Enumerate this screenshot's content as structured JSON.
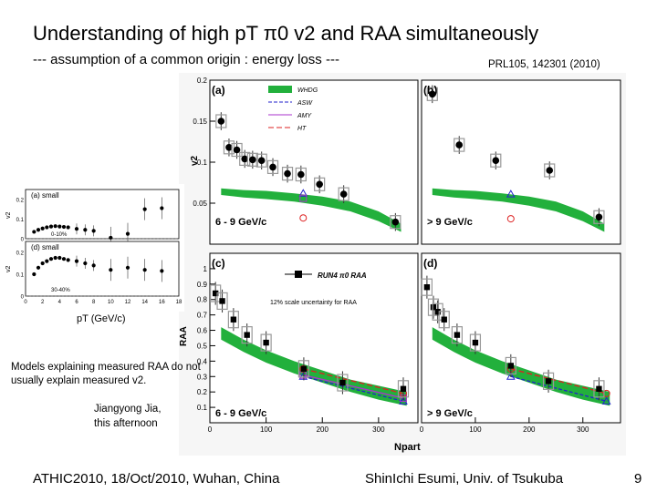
{
  "slide": {
    "title": "Understanding of high pT π0 v2 and RAA simultaneously",
    "subtitle": "--- assumption of a common origin : energy loss ---",
    "reference": "PRL105, 142301 (2010)",
    "small_xlabel": "pT (GeV/c)",
    "note": "Models explaining measured RAA do not usually explain measured v2.",
    "speaker_line1": "Jiangyong Jia,",
    "speaker_line2": "this afternoon",
    "footer_left": "ATHIC2010, 18/Oct/2010, Wuhan, China",
    "footer_center": "ShinIchi Esumi, Univ. of Tsukuba",
    "page_number": "9"
  },
  "chart_data": [
    {
      "type": "scatter",
      "panel": "(a)",
      "ylabel": "v2",
      "xlabel": "",
      "xlim": [
        0,
        370
      ],
      "ylim": [
        0,
        0.2
      ],
      "yticks": [
        0.05,
        0.1,
        0.15,
        0.2
      ],
      "annotation": "6 - 9 GeV/c",
      "legend_entries": [
        "WHDG",
        "ASW",
        "AMY",
        "HT"
      ],
      "series": [
        {
          "name": "data",
          "x": [
            20,
            34,
            48,
            62,
            76,
            92,
            112,
            138,
            162,
            195,
            238,
            330
          ],
          "y": [
            0.15,
            0.118,
            0.115,
            0.104,
            0.103,
            0.102,
            0.094,
            0.086,
            0.085,
            0.073,
            0.061,
            0.027
          ]
        },
        {
          "name": "WHDG band upper",
          "x": [
            20,
            60,
            100,
            150,
            200,
            250,
            300,
            340
          ],
          "y": [
            0.068,
            0.066,
            0.065,
            0.062,
            0.058,
            0.052,
            0.04,
            0.025
          ]
        },
        {
          "name": "WHDG band lower",
          "x": [
            20,
            60,
            100,
            150,
            200,
            250,
            300,
            340
          ],
          "y": [
            0.06,
            0.057,
            0.055,
            0.052,
            0.047,
            0.04,
            0.028,
            0.015
          ]
        },
        {
          "name": "ASW",
          "x": [
            166
          ],
          "y": [
            0.062
          ]
        },
        {
          "name": "AMY",
          "x": [
            166
          ],
          "y": [
            0.056
          ]
        },
        {
          "name": "HT",
          "x": [
            166
          ],
          "y": [
            0.032
          ]
        }
      ]
    },
    {
      "type": "scatter",
      "panel": "(b)",
      "ylabel": "",
      "xlabel": "",
      "xlim": [
        0,
        370
      ],
      "ylim": [
        0,
        0.2
      ],
      "annotation": "> 9 GeV/c",
      "series": [
        {
          "name": "data",
          "x": [
            20,
            70,
            138,
            238,
            330
          ],
          "y": [
            0.183,
            0.121,
            0.102,
            0.09,
            0.033
          ]
        },
        {
          "name": "WHDG band upper",
          "x": [
            20,
            60,
            100,
            150,
            200,
            250,
            300,
            340
          ],
          "y": [
            0.068,
            0.066,
            0.065,
            0.062,
            0.058,
            0.052,
            0.04,
            0.025
          ]
        },
        {
          "name": "WHDG band lower",
          "x": [
            20,
            60,
            100,
            150,
            200,
            250,
            300,
            340
          ],
          "y": [
            0.06,
            0.057,
            0.055,
            0.052,
            0.047,
            0.04,
            0.028,
            0.015
          ]
        },
        {
          "name": "ASW",
          "x": [
            166
          ],
          "y": [
            0.061
          ]
        },
        {
          "name": "HT",
          "x": [
            166
          ],
          "y": [
            0.031
          ]
        }
      ]
    },
    {
      "type": "scatter",
      "panel": "(c)",
      "ylabel": "RAA",
      "xlabel": "",
      "xlim": [
        0,
        370
      ],
      "ylim": [
        0,
        1.1
      ],
      "yticks": [
        0.1,
        0.2,
        0.3,
        0.4,
        0.5,
        0.6,
        0.7,
        0.8,
        0.9,
        1.0
      ],
      "xticks": [
        0,
        100,
        200,
        300
      ],
      "annotation": "6 - 9 GeV/c",
      "legend_entries": [
        "RUN4 π0 RAA"
      ],
      "note": "12% scale uncertainty for RAA",
      "series": [
        {
          "name": "RUN4 data",
          "x": [
            10,
            22,
            42,
            66,
            100,
            167,
            236,
            344
          ],
          "y": [
            0.84,
            0.79,
            0.67,
            0.57,
            0.52,
            0.35,
            0.26,
            0.22
          ]
        },
        {
          "name": "WHDG band upper",
          "x": [
            20,
            60,
            100,
            150,
            200,
            250,
            300,
            350
          ],
          "y": [
            0.62,
            0.54,
            0.47,
            0.4,
            0.34,
            0.28,
            0.24,
            0.2
          ]
        },
        {
          "name": "WHDG band lower",
          "x": [
            20,
            60,
            100,
            150,
            200,
            250,
            300,
            350
          ],
          "y": [
            0.54,
            0.46,
            0.39,
            0.32,
            0.26,
            0.2,
            0.15,
            0.11
          ]
        },
        {
          "name": "HT",
          "x": [
            166,
            344
          ],
          "y": [
            0.35,
            0.19
          ]
        },
        {
          "name": "AMY",
          "x": [
            166,
            344
          ],
          "y": [
            0.31,
            0.16
          ]
        },
        {
          "name": "ASW",
          "x": [
            166,
            344
          ],
          "y": [
            0.3,
            0.14
          ]
        }
      ]
    },
    {
      "type": "scatter",
      "panel": "(d)",
      "ylabel": "",
      "xlabel": "Npart",
      "xlim": [
        0,
        370
      ],
      "ylim": [
        0,
        1.1
      ],
      "xticks": [
        0,
        100,
        200,
        300
      ],
      "annotation": "> 9 GeV/c",
      "series": [
        {
          "name": "data",
          "x": [
            10,
            22,
            30,
            42,
            66,
            100,
            166,
            236,
            330
          ],
          "y": [
            0.88,
            0.75,
            0.72,
            0.67,
            0.57,
            0.52,
            0.37,
            0.27,
            0.22
          ]
        },
        {
          "name": "WHDG band upper",
          "x": [
            20,
            60,
            100,
            150,
            200,
            250,
            300,
            350
          ],
          "y": [
            0.62,
            0.54,
            0.47,
            0.4,
            0.34,
            0.28,
            0.24,
            0.2
          ]
        },
        {
          "name": "WHDG band lower",
          "x": [
            20,
            60,
            100,
            150,
            200,
            250,
            300,
            350
          ],
          "y": [
            0.54,
            0.46,
            0.39,
            0.32,
            0.26,
            0.2,
            0.15,
            0.11
          ]
        },
        {
          "name": "HT",
          "x": [
            166,
            344
          ],
          "y": [
            0.35,
            0.19
          ]
        },
        {
          "name": "ASW",
          "x": [
            166,
            344
          ],
          "y": [
            0.3,
            0.14
          ]
        }
      ]
    },
    {
      "type": "scatter",
      "panel": "(a) small",
      "ylabel": "v2",
      "xlabel": "pT (GeV/c)",
      "xlim": [
        0,
        18
      ],
      "ylim": [
        0,
        0.25
      ],
      "yticks": [
        0,
        0.1,
        0.2
      ],
      "annotation": "0-10%",
      "series": [
        {
          "name": "data",
          "x": [
            1,
            1.5,
            2,
            2.5,
            3,
            3.5,
            4,
            4.5,
            5,
            6,
            7,
            8,
            10,
            12,
            14,
            16
          ],
          "y": [
            0.035,
            0.045,
            0.052,
            0.058,
            0.062,
            0.064,
            0.062,
            0.06,
            0.058,
            0.05,
            0.045,
            0.04,
            0.005,
            0.025,
            0.15,
            0.155
          ]
        }
      ]
    },
    {
      "type": "scatter",
      "panel": "(d) small",
      "ylabel": "v2",
      "xlabel": "pT (GeV/c)",
      "xlim": [
        0,
        18
      ],
      "ylim": [
        0,
        0.25
      ],
      "yticks": [
        0,
        0.1,
        0.2
      ],
      "xticks": [
        0,
        2,
        4,
        6,
        8,
        10,
        12,
        14,
        16,
        18
      ],
      "annotation": "30-40%",
      "series": [
        {
          "name": "data",
          "x": [
            1,
            1.5,
            2,
            2.5,
            3,
            3.5,
            4,
            4.5,
            5,
            6,
            7,
            8,
            10,
            12,
            14,
            16
          ],
          "y": [
            0.1,
            0.13,
            0.15,
            0.16,
            0.17,
            0.175,
            0.175,
            0.17,
            0.165,
            0.16,
            0.15,
            0.14,
            0.12,
            0.13,
            0.12,
            0.115
          ]
        }
      ]
    }
  ]
}
